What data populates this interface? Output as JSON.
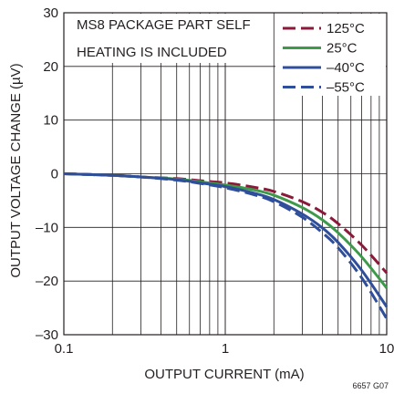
{
  "chart_data": {
    "type": "line",
    "xlabel": "OUTPUT CURRENT (mA)",
    "ylabel": "OUTPUT VOLTAGE CHANGE (µV)",
    "x_scale": "log",
    "xlim": [
      0.1,
      10
    ],
    "ylim": [
      -30,
      30
    ],
    "x_ticks": [
      {
        "value": 0.1,
        "label": "0.1"
      },
      {
        "value": 1,
        "label": "1"
      },
      {
        "value": 10,
        "label": "10"
      }
    ],
    "y_ticks": [
      {
        "value": 30,
        "label": "30"
      },
      {
        "value": 20,
        "label": "20"
      },
      {
        "value": 10,
        "label": "10"
      },
      {
        "value": 0,
        "label": "0"
      },
      {
        "value": -10,
        "label": "–10"
      },
      {
        "value": -20,
        "label": "–20"
      },
      {
        "value": -30,
        "label": "–30"
      }
    ],
    "grid": true,
    "legend_position": "top-right",
    "annotation_lines": [
      "MS8 PACKAGE PART SELF",
      "HEATING IS INCLUDED"
    ],
    "figure_id": "6657 G07",
    "series": [
      {
        "name": "125°C",
        "color": "#8b1a3a",
        "dash": "long-dash",
        "x": [
          0.1,
          0.2,
          0.3,
          0.5,
          0.7,
          1,
          1.5,
          2,
          3,
          4,
          5,
          7,
          10
        ],
        "y": [
          0,
          -0.3,
          -0.6,
          -0.9,
          -1.3,
          -1.7,
          -2.5,
          -3.3,
          -5.2,
          -7.2,
          -9.3,
          -13.3,
          -18.5
        ]
      },
      {
        "name": "25°C",
        "color": "#3e9a4a",
        "dash": "solid",
        "x": [
          0.1,
          0.2,
          0.3,
          0.5,
          0.7,
          1,
          1.5,
          2,
          3,
          4,
          5,
          7,
          10
        ],
        "y": [
          0,
          -0.3,
          -0.6,
          -1.0,
          -1.5,
          -2.1,
          -3.0,
          -4.0,
          -6.3,
          -8.6,
          -11.0,
          -15.5,
          -21.3
        ]
      },
      {
        "name": "–40°C",
        "color": "#2f4f9b",
        "dash": "solid",
        "x": [
          0.1,
          0.2,
          0.3,
          0.5,
          0.7,
          1,
          1.5,
          2,
          3,
          4,
          5,
          7,
          10
        ],
        "y": [
          0,
          -0.3,
          -0.6,
          -1.1,
          -1.7,
          -2.4,
          -3.6,
          -4.8,
          -7.5,
          -10.1,
          -12.8,
          -18.0,
          -24.8
        ]
      },
      {
        "name": "–55°C",
        "color": "#2f4f9b",
        "dash": "long-dash",
        "x": [
          0.1,
          0.2,
          0.3,
          0.5,
          0.7,
          1,
          1.5,
          2,
          3,
          4,
          5,
          7,
          10
        ],
        "y": [
          0,
          -0.3,
          -0.6,
          -1.2,
          -1.8,
          -2.6,
          -3.9,
          -5.2,
          -8.1,
          -11.0,
          -13.8,
          -19.4,
          -27.0
        ]
      }
    ]
  }
}
